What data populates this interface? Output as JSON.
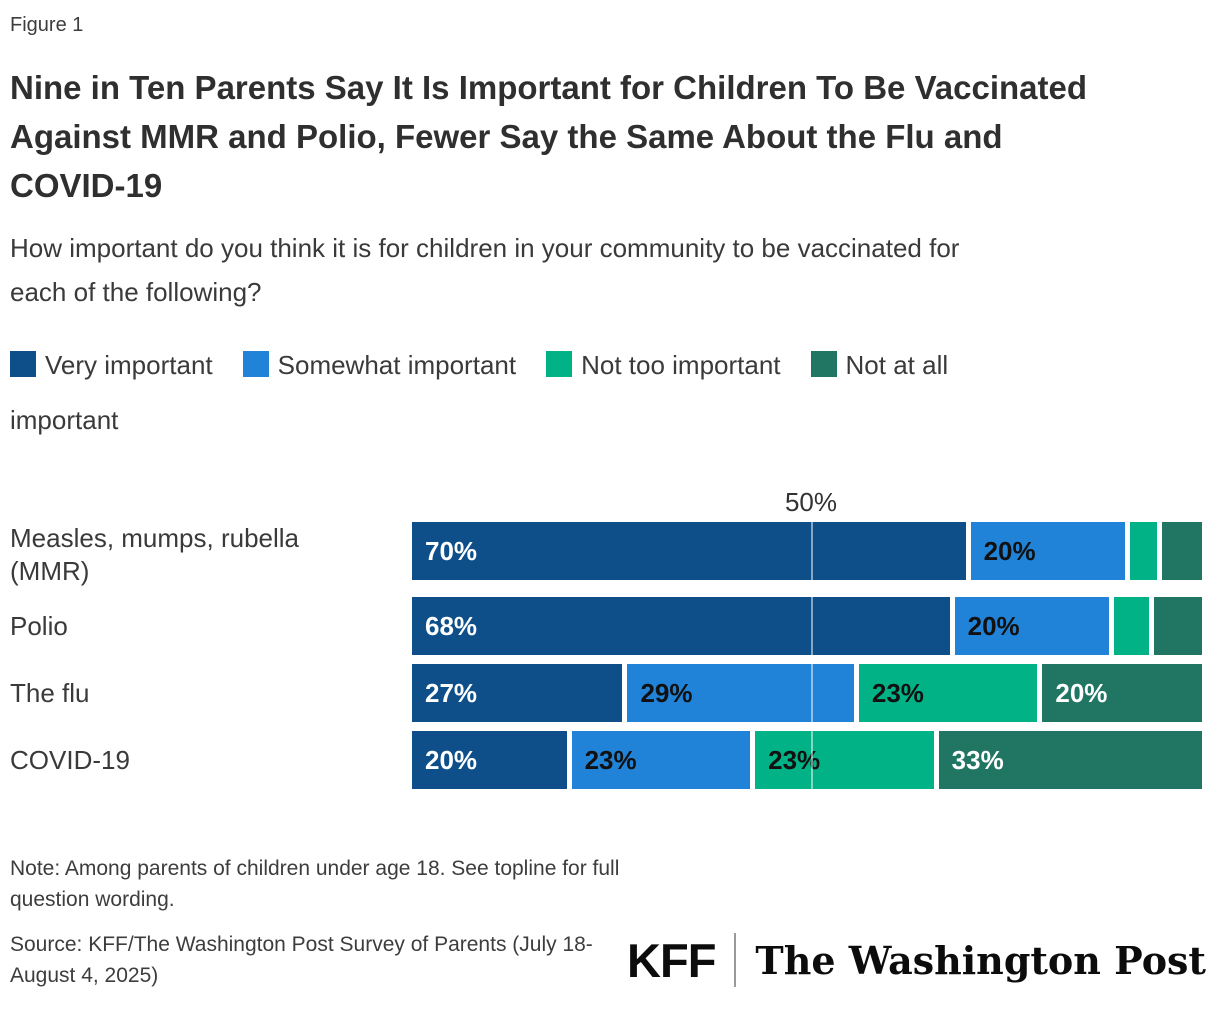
{
  "figure_label": "Figure 1",
  "title": "Nine in Ten Parents Say It Is Important for Children To Be Vaccinated Against MMR and Polio, Fewer Say the Same About the Flu and COVID-19",
  "subtitle": "How important do you think it is for children in your community to be vaccinated for each of the following?",
  "legend": {
    "items": [
      {
        "label": "Very important",
        "color": "#0e4f89"
      },
      {
        "label": "Somewhat important",
        "color": "#2183d8"
      },
      {
        "label": "Not too important",
        "color": "#00b285"
      },
      {
        "label": "Not at all important",
        "color": "#207662",
        "label_line1": "Not at all",
        "label_line2": "important"
      }
    ]
  },
  "chart_data": {
    "type": "bar",
    "orientation": "horizontal_stacked",
    "title": "How important do you think it is for children in your community to be vaccinated for each of the following?",
    "categories": [
      "Measles, mumps, rubella (MMR)",
      "Polio",
      "The flu",
      "COVID-19"
    ],
    "series": [
      {
        "name": "Very important",
        "color": "#0e4f89",
        "label_color": "#ffffff",
        "values": [
          70,
          68,
          27,
          20
        ]
      },
      {
        "name": "Somewhat important",
        "color": "#2183d8",
        "label_color": "#111111",
        "values": [
          20,
          20,
          29,
          23
        ]
      },
      {
        "name": "Not too important",
        "color": "#00b285",
        "label_color": "#111111",
        "values": [
          4,
          5,
          23,
          23
        ]
      },
      {
        "name": "Not at all important",
        "color": "#207662",
        "label_color": "#ffffff",
        "values": [
          5,
          6,
          20,
          33
        ]
      }
    ],
    "data_labels_shown": [
      [
        true,
        true,
        false,
        false
      ],
      [
        true,
        true,
        false,
        false
      ],
      [
        true,
        true,
        true,
        true
      ],
      [
        true,
        true,
        true,
        true
      ]
    ],
    "xlim": [
      0,
      100
    ],
    "axis_tick": "50%",
    "gridline_at": 50,
    "legend_position": "top"
  },
  "note": "Note: Among parents of children under age 18. See topline for full question wording.",
  "source": "Source: KFF/The Washington Post Survey of Parents (July 18-August 4, 2025)",
  "logos": {
    "kff": "KFF",
    "washington_post": "The Washington Post"
  }
}
